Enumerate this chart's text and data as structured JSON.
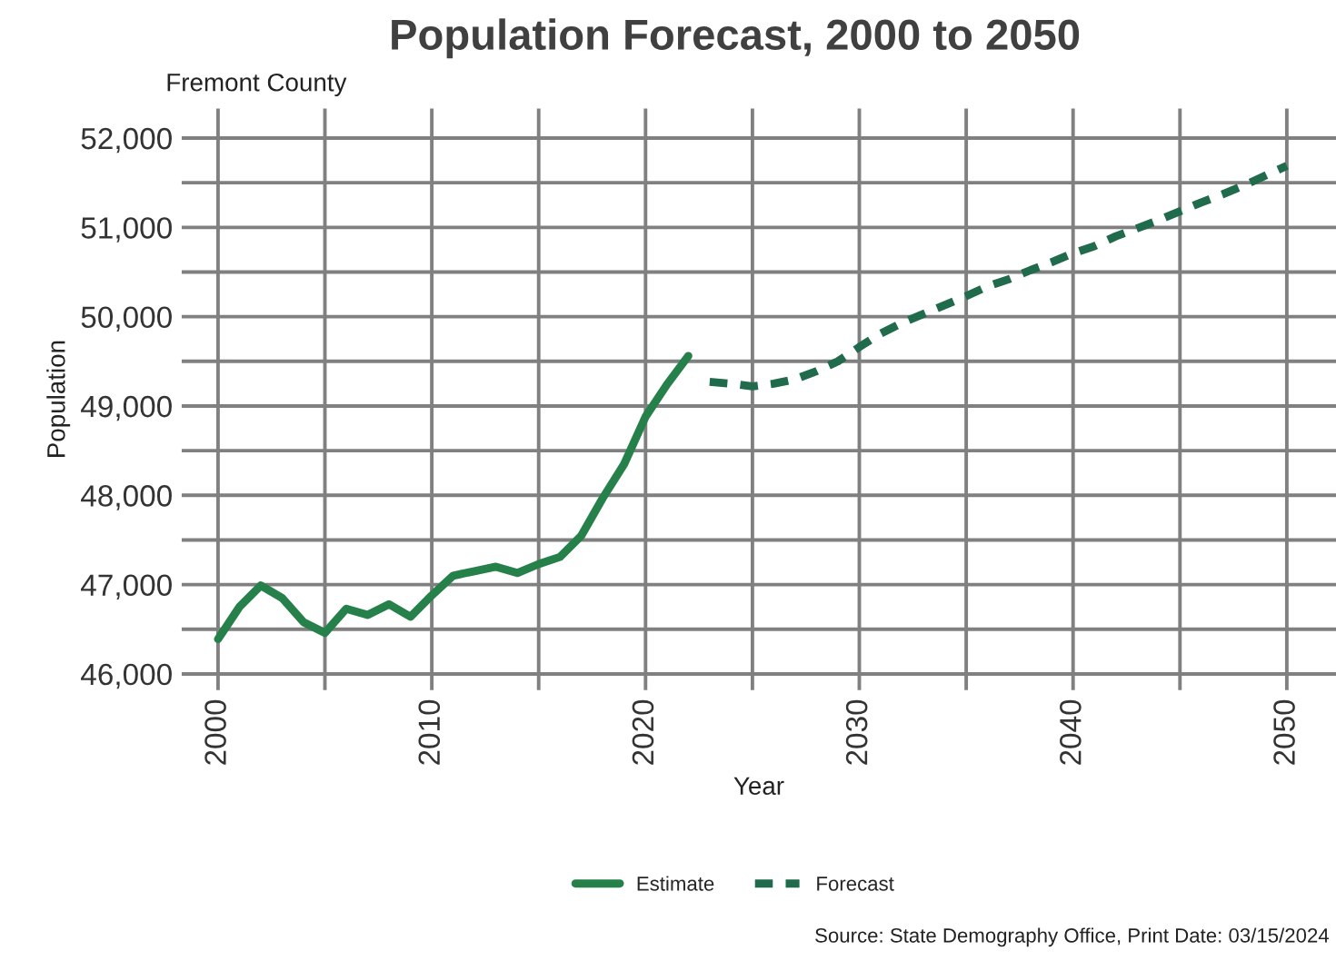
{
  "chart_data": {
    "type": "line",
    "title": "Population Forecast, 2000 to 2050",
    "subtitle": "Fremont County",
    "xlabel": "Year",
    "ylabel": "Population",
    "series": [
      {
        "name": "Estimate",
        "color": "#26804a",
        "line_style": "solid",
        "x": [
          2000,
          2001,
          2002,
          2003,
          2004,
          2005,
          2006,
          2007,
          2008,
          2009,
          2010,
          2011,
          2012,
          2013,
          2014,
          2015,
          2016,
          2017,
          2018,
          2019,
          2020,
          2021,
          2022
        ],
        "values": [
          46390,
          46750,
          46990,
          46850,
          46580,
          46460,
          46730,
          46660,
          46780,
          46640,
          46880,
          47100,
          47150,
          47200,
          47130,
          47230,
          47310,
          47550,
          47970,
          48350,
          48880,
          49240,
          49560
        ]
      },
      {
        "name": "Forecast",
        "color": "#1f6b4c",
        "line_style": "dashed",
        "x": [
          2023,
          2024,
          2025,
          2026,
          2027,
          2028,
          2029,
          2030,
          2031,
          2032,
          2033,
          2034,
          2035,
          2036,
          2037,
          2038,
          2039,
          2040,
          2041,
          2042,
          2043,
          2044,
          2045,
          2046,
          2047,
          2048,
          2049,
          2050
        ],
        "values": [
          49270,
          49250,
          49220,
          49250,
          49300,
          49390,
          49500,
          49660,
          49810,
          49930,
          50030,
          50130,
          50230,
          50340,
          50420,
          50520,
          50610,
          50710,
          50790,
          50900,
          50990,
          51080,
          51180,
          51280,
          51370,
          51470,
          51580,
          51690
        ]
      }
    ],
    "xlim": [
      1998.3,
      2052.3
    ],
    "ylim": [
      45820,
      52330
    ],
    "xticks": [
      2000,
      {
        "value": 2005,
        "label": null
      },
      2010,
      {
        "value": 2015,
        "label": null
      },
      2020,
      {
        "value": 2025,
        "label": null
      },
      2030,
      {
        "value": 2035,
        "label": null
      },
      2040,
      {
        "value": 2045,
        "label": null
      },
      2050
    ],
    "yticks": [
      {
        "value": 46000,
        "label": "46,000"
      },
      {
        "value": 46500,
        "label": null
      },
      {
        "value": 47000,
        "label": "47,000"
      },
      {
        "value": 47500,
        "label": null
      },
      {
        "value": 48000,
        "label": "48,000"
      },
      {
        "value": 48500,
        "label": null
      },
      {
        "value": 49000,
        "label": "49,000"
      },
      {
        "value": 49500,
        "label": null
      },
      {
        "value": 50000,
        "label": "50,000"
      },
      {
        "value": 50500,
        "label": null
      },
      {
        "value": 51000,
        "label": "51,000"
      },
      {
        "value": 51500,
        "label": null
      },
      {
        "value": 52000,
        "label": "52,000"
      }
    ],
    "grid": true,
    "legend": "bottom",
    "annotations": [
      "Source: State Demography Office, Print Date: 03/15/2024"
    ]
  }
}
